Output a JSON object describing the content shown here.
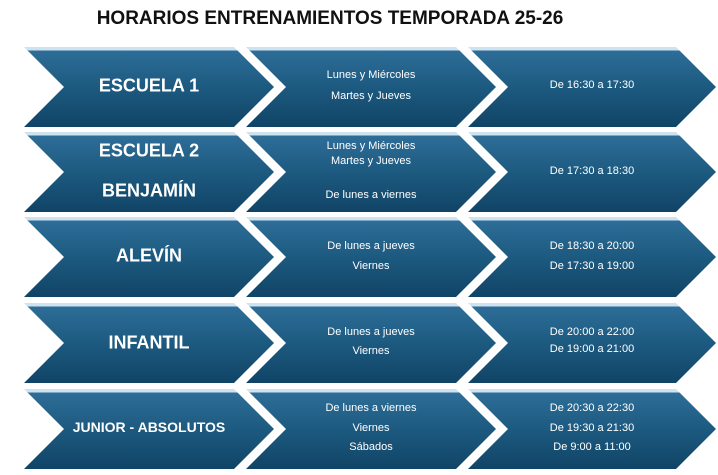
{
  "title": "HORARIOS ENTRENAMIENTOS TEMPORADA 25-26",
  "rows": [
    {
      "group": [
        "ESCUELA 1"
      ],
      "days": [
        "Lunes y Miércoles",
        "Martes y Jueves"
      ],
      "times": [
        "De 16:30 a 17:30"
      ]
    },
    {
      "group": [
        "ESCUELA 2",
        "BENJAMÍN"
      ],
      "days": [
        "Lunes y Miércoles",
        "Martes y Jueves",
        "De lunes a viernes"
      ],
      "times": [
        "De 17:30 a 18:30"
      ]
    },
    {
      "group": [
        "ALEVÍN"
      ],
      "days": [
        "De lunes a jueves",
        "Viernes"
      ],
      "times": [
        "De 18:30 a 20:00",
        "De 17:30 a 19:00"
      ]
    },
    {
      "group": [
        "INFANTIL"
      ],
      "days": [
        "De lunes a jueves",
        "Viernes"
      ],
      "times": [
        "De 20:00 a 22:00",
        "De 19:00 a 21:00"
      ]
    },
    {
      "group": [
        "JUNIOR - ABSOLUTOS"
      ],
      "days": [
        "De lunes a viernes",
        "Viernes",
        "Sábados"
      ],
      "times": [
        "De 20:30 a 22:30",
        "De 19:30 a 21:30",
        "De 9:00 a 11:00"
      ]
    }
  ],
  "colors": {
    "chevron_top": "#2d6d97",
    "chevron_bottom": "#104466",
    "text": "#ffffff"
  }
}
